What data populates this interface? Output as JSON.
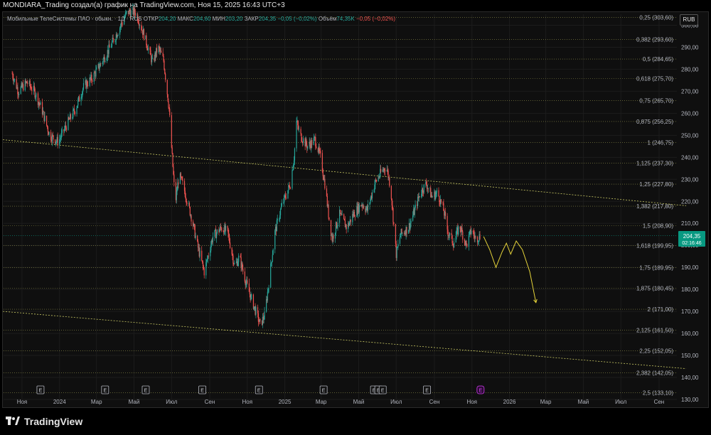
{
  "header": {
    "title": "MONDIARA_Trading создал(а) график на TradingView.com, Ноя 15, 2025 16:43 UTC+3"
  },
  "legend": {
    "symbol": "Мобильные ТелеСистемы ПАО - обыкн. · 1Д · RUS",
    "open_label": "ОТКР",
    "open_value": "204,20",
    "high_label": "МАКС",
    "high_value": "204,60",
    "low_label": "МИН",
    "low_value": "203,20",
    "close_label": "ЗАКР",
    "close_value": "204,35",
    "change_value": "−0,05 (−0,02%)",
    "volume_label": "Объём",
    "volume_value": "74,35K",
    "volume_change": "−0,05 (−0,02%)"
  },
  "currency_button": "RUB",
  "price_tag": {
    "price": "204,35",
    "countdown": "02:16:46"
  },
  "earnings_marker_label": "E",
  "footer": {
    "brand": "TradingView"
  },
  "colors": {
    "up": "#26a69a",
    "down": "#ef5350",
    "fib": "#c8c864",
    "projection": "#e6d43a",
    "tag": "#089981",
    "earnings_upcoming": "#d33cf0"
  },
  "chart_data": {
    "type": "candlestick",
    "symbol": "MTSS",
    "interval": "1D",
    "ylim": [
      130,
      305
    ],
    "y_ticks": [
      130,
      140,
      150,
      160,
      170,
      180,
      190,
      200,
      210,
      220,
      230,
      240,
      250,
      260,
      270,
      280,
      290,
      300
    ],
    "y_tick_labels": [
      "130,00",
      "140,00",
      "150,00",
      "160,00",
      "170,00",
      "180,00",
      "190,00",
      "200,00",
      "210,00",
      "220,00",
      "230,00",
      "240,00",
      "250,00",
      "260,00",
      "270,00",
      "280,00",
      "290,00",
      "300,00"
    ],
    "x_ticks": [
      {
        "label": "Ноя",
        "date": "2023-11-01"
      },
      {
        "label": "2024",
        "date": "2024-01-01"
      },
      {
        "label": "Мар",
        "date": "2024-03-01"
      },
      {
        "label": "Май",
        "date": "2024-05-01"
      },
      {
        "label": "Июл",
        "date": "2024-07-01"
      },
      {
        "label": "Сен",
        "date": "2024-09-01"
      },
      {
        "label": "Ноя",
        "date": "2024-11-01"
      },
      {
        "label": "2025",
        "date": "2025-01-01"
      },
      {
        "label": "Мар",
        "date": "2025-03-01"
      },
      {
        "label": "Май",
        "date": "2025-05-01"
      },
      {
        "label": "Июл",
        "date": "2025-07-01"
      },
      {
        "label": "Сен",
        "date": "2025-09-01"
      },
      {
        "label": "Ноя",
        "date": "2025-11-01"
      },
      {
        "label": "2026",
        "date": "2026-01-01"
      },
      {
        "label": "Мар",
        "date": "2026-03-01"
      },
      {
        "label": "Май",
        "date": "2026-05-01"
      },
      {
        "label": "Июл",
        "date": "2026-07-01"
      },
      {
        "label": "Сен",
        "date": "2026-09-01"
      }
    ],
    "price_path": [
      {
        "date": "2023-10-16",
        "price": 278
      },
      {
        "date": "2023-10-26",
        "price": 270
      },
      {
        "date": "2023-11-09",
        "price": 274
      },
      {
        "date": "2023-11-21",
        "price": 270
      },
      {
        "date": "2023-12-03",
        "price": 262
      },
      {
        "date": "2023-12-16",
        "price": 250
      },
      {
        "date": "2023-12-30",
        "price": 247
      },
      {
        "date": "2024-01-13",
        "price": 255
      },
      {
        "date": "2024-01-27",
        "price": 262
      },
      {
        "date": "2024-02-09",
        "price": 272
      },
      {
        "date": "2024-02-23",
        "price": 276
      },
      {
        "date": "2024-03-09",
        "price": 283
      },
      {
        "date": "2024-03-23",
        "price": 290
      },
      {
        "date": "2024-04-06",
        "price": 298
      },
      {
        "date": "2024-04-20",
        "price": 306
      },
      {
        "date": "2024-05-04",
        "price": 306
      },
      {
        "date": "2024-05-18",
        "price": 295
      },
      {
        "date": "2024-05-31",
        "price": 283
      },
      {
        "date": "2024-06-09",
        "price": 290
      },
      {
        "date": "2024-06-18",
        "price": 284
      },
      {
        "date": "2024-06-27",
        "price": 262
      },
      {
        "date": "2024-07-02",
        "price": 240
      },
      {
        "date": "2024-07-07",
        "price": 219
      },
      {
        "date": "2024-07-13",
        "price": 232
      },
      {
        "date": "2024-07-20",
        "price": 227
      },
      {
        "date": "2024-08-03",
        "price": 212
      },
      {
        "date": "2024-08-12",
        "price": 200
      },
      {
        "date": "2024-08-23",
        "price": 188
      },
      {
        "date": "2024-09-06",
        "price": 204
      },
      {
        "date": "2024-09-20",
        "price": 208
      },
      {
        "date": "2024-09-30",
        "price": 206
      },
      {
        "date": "2024-10-12",
        "price": 190
      },
      {
        "date": "2024-10-19",
        "price": 195
      },
      {
        "date": "2024-10-30",
        "price": 183
      },
      {
        "date": "2024-11-11",
        "price": 173
      },
      {
        "date": "2024-11-22",
        "price": 164
      },
      {
        "date": "2024-11-29",
        "price": 168
      },
      {
        "date": "2024-12-06",
        "price": 183
      },
      {
        "date": "2024-12-16",
        "price": 206
      },
      {
        "date": "2024-12-27",
        "price": 218
      },
      {
        "date": "2025-01-10",
        "price": 228
      },
      {
        "date": "2025-01-16",
        "price": 240
      },
      {
        "date": "2025-01-20",
        "price": 256
      },
      {
        "date": "2025-01-26",
        "price": 250
      },
      {
        "date": "2025-02-07",
        "price": 245
      },
      {
        "date": "2025-02-19",
        "price": 248
      },
      {
        "date": "2025-02-28",
        "price": 240
      },
      {
        "date": "2025-03-07",
        "price": 228
      },
      {
        "date": "2025-03-14",
        "price": 212
      },
      {
        "date": "2025-03-19",
        "price": 203
      },
      {
        "date": "2025-03-31",
        "price": 214
      },
      {
        "date": "2025-04-12",
        "price": 208
      },
      {
        "date": "2025-04-22",
        "price": 214
      },
      {
        "date": "2025-05-06",
        "price": 219
      },
      {
        "date": "2025-05-15",
        "price": 216
      },
      {
        "date": "2025-05-27",
        "price": 228
      },
      {
        "date": "2025-06-06",
        "price": 233
      },
      {
        "date": "2025-06-15",
        "price": 236
      },
      {
        "date": "2025-06-22",
        "price": 226
      },
      {
        "date": "2025-07-01",
        "price": 196
      },
      {
        "date": "2025-07-08",
        "price": 205
      },
      {
        "date": "2025-07-21",
        "price": 208
      },
      {
        "date": "2025-07-31",
        "price": 216
      },
      {
        "date": "2025-08-09",
        "price": 224
      },
      {
        "date": "2025-08-19",
        "price": 228
      },
      {
        "date": "2025-08-28",
        "price": 222
      },
      {
        "date": "2025-09-06",
        "price": 224
      },
      {
        "date": "2025-09-16",
        "price": 216
      },
      {
        "date": "2025-09-23",
        "price": 206
      },
      {
        "date": "2025-10-02",
        "price": 201
      },
      {
        "date": "2025-10-12",
        "price": 209
      },
      {
        "date": "2025-10-23",
        "price": 200
      },
      {
        "date": "2025-10-31",
        "price": 207
      },
      {
        "date": "2025-11-07",
        "price": 203
      },
      {
        "date": "2025-11-15",
        "price": 204.35
      }
    ],
    "earnings_dates": [
      "2023-12-01",
      "2024-03-15",
      "2024-05-20",
      "2024-08-20",
      "2024-11-20",
      "2025-03-05",
      "2025-05-26",
      "2025-06-02",
      "2025-06-09",
      "2025-08-20",
      "2025-11-15"
    ],
    "fib_levels": [
      {
        "label": "0,25 (303,60)",
        "value": 303.6
      },
      {
        "label": "0,382 (293,60)",
        "value": 293.6
      },
      {
        "label": "0,5 (284,65)",
        "value": 284.65
      },
      {
        "label": "0,618 (275,70)",
        "value": 275.7
      },
      {
        "label": "0,75 (265,70)",
        "value": 265.7
      },
      {
        "label": "0,875 (256,25)",
        "value": 256.25
      },
      {
        "label": "1 (246,75)",
        "value": 246.75
      },
      {
        "label": "1,125 (237,30)",
        "value": 237.3
      },
      {
        "label": "1,25 (227,80)",
        "value": 227.8
      },
      {
        "label": "1,382 (217,80)",
        "value": 217.8
      },
      {
        "label": "1,5 (208,90)",
        "value": 208.9
      },
      {
        "label": "1,618 (199,95)",
        "value": 199.95
      },
      {
        "label": "1,75 (189,95)",
        "value": 189.95
      },
      {
        "label": "1,875 (180,45)",
        "value": 180.45
      },
      {
        "label": "2 (171,00)",
        "value": 171.0
      },
      {
        "label": "2,125 (161,50)",
        "value": 161.5
      },
      {
        "label": "2,25 (152,05)",
        "value": 152.05
      },
      {
        "label": "2,382 (142,05)",
        "value": 142.05
      },
      {
        "label": "2,5 (133,10)",
        "value": 133.1
      }
    ],
    "trendlines": [
      {
        "points": [
          {
            "date": "2023-10-01",
            "price": 248
          },
          {
            "date": "2026-10-15",
            "price": 218
          }
        ]
      },
      {
        "points": [
          {
            "date": "2023-10-01",
            "price": 170
          },
          {
            "date": "2026-10-15",
            "price": 144
          }
        ]
      }
    ],
    "projection": [
      {
        "date": "2025-11-20",
        "price": 204
      },
      {
        "date": "2025-11-30",
        "price": 198
      },
      {
        "date": "2025-12-10",
        "price": 190
      },
      {
        "date": "2025-12-20",
        "price": 197
      },
      {
        "date": "2025-12-27",
        "price": 201
      },
      {
        "date": "2026-01-03",
        "price": 196
      },
      {
        "date": "2026-01-12",
        "price": 202
      },
      {
        "date": "2026-01-22",
        "price": 198
      },
      {
        "date": "2026-02-03",
        "price": 188
      },
      {
        "date": "2026-02-13",
        "price": 174
      }
    ],
    "last_price": 204.35
  }
}
